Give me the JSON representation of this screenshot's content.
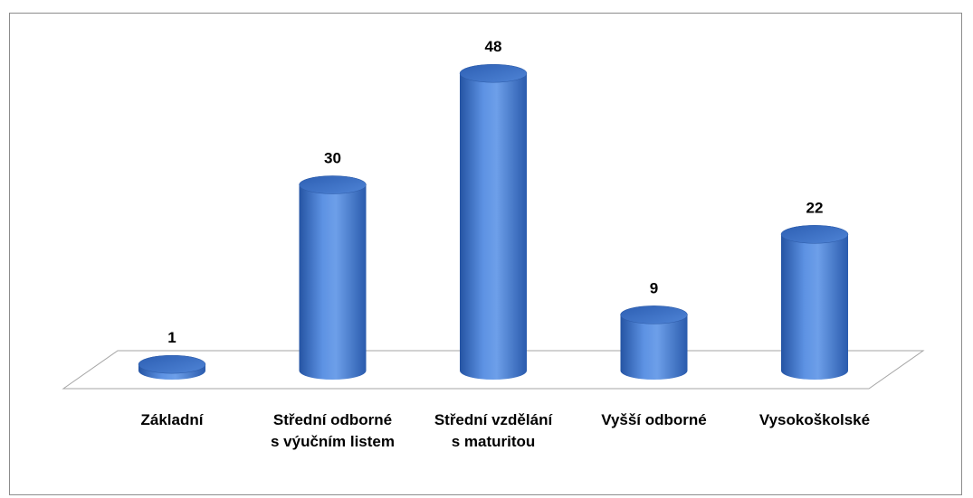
{
  "chart_data": {
    "type": "bar3d",
    "categories": [
      "Základní",
      "Střední odborné s výučním listem",
      "Střední vzdělání s maturitou",
      "Vyšší odborné",
      "Vysokoškolské"
    ],
    "values": [
      1,
      30,
      48,
      9,
      22
    ],
    "color": "#4a80d4"
  }
}
